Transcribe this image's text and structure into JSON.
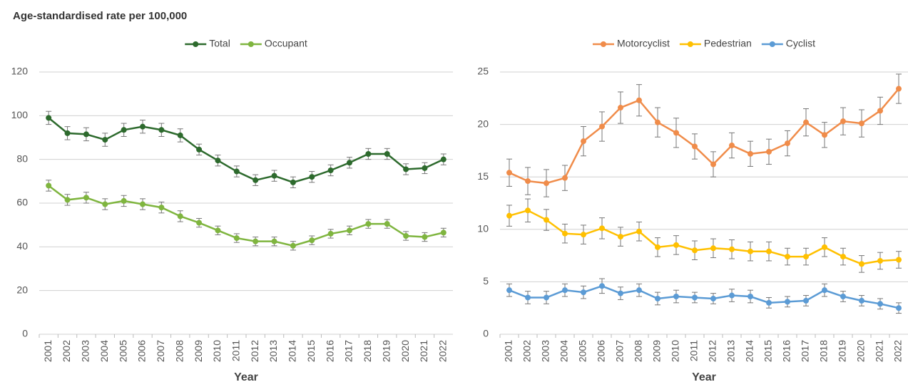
{
  "chart_data": [
    {
      "type": "line",
      "title": "Age-standardised rate per 100,000",
      "x_label": "Year",
      "categories": [
        "2001",
        "2002",
        "2003",
        "2004",
        "2005",
        "2006",
        "2007",
        "2008",
        "2009",
        "2010",
        "2011",
        "2012",
        "2013",
        "2014",
        "2015",
        "2016",
        "2017",
        "2018",
        "2019",
        "2020",
        "2021",
        "2022"
      ],
      "series": [
        {
          "name": "Total",
          "color": "#2d6a2d",
          "values": [
            99,
            92,
            91.5,
            89,
            93.5,
            95,
            93.5,
            91,
            84.5,
            79.5,
            74.5,
            70.5,
            72.5,
            69.5,
            72,
            75,
            78.5,
            82.5,
            82.5,
            75.5,
            76,
            80
          ],
          "errors": [
            3,
            3,
            3,
            3,
            3,
            3,
            3,
            3,
            2.5,
            2.5,
            2.5,
            2.5,
            2.5,
            2.5,
            2.5,
            2.5,
            2.5,
            2.5,
            2.5,
            2.5,
            2.5,
            2.5
          ]
        },
        {
          "name": "Occupant",
          "color": "#7fb53f",
          "values": [
            68,
            61.5,
            62.5,
            59.5,
            61,
            59.5,
            58,
            54,
            51,
            47.5,
            44,
            42.5,
            42.5,
            40.5,
            43,
            46,
            47.5,
            50.5,
            50.5,
            45,
            44.5,
            46.5
          ],
          "errors": [
            2.5,
            2.5,
            2.5,
            2.5,
            2.5,
            2.5,
            2.5,
            2.5,
            2,
            2,
            2,
            2,
            2,
            2,
            2,
            2,
            2,
            2,
            2,
            2,
            2,
            2
          ]
        }
      ],
      "ylim": [
        0,
        120
      ],
      "yticks": [
        0,
        20,
        40,
        60,
        80,
        100,
        120
      ],
      "grid": true,
      "legend": "top"
    },
    {
      "type": "line",
      "x_label": "Year",
      "categories": [
        "2001",
        "2002",
        "2003",
        "2004",
        "2005",
        "2006",
        "2007",
        "2008",
        "2009",
        "2010",
        "2011",
        "2012",
        "2013",
        "2014",
        "2015",
        "2016",
        "2017",
        "2018",
        "2019",
        "2020",
        "2021",
        "2022"
      ],
      "series": [
        {
          "name": "Motorcyclist",
          "color": "#f08c4a",
          "values": [
            15.4,
            14.6,
            14.4,
            14.9,
            18.4,
            19.8,
            21.6,
            22.3,
            20.2,
            19.2,
            17.9,
            16.2,
            18.0,
            17.2,
            17.4,
            18.2,
            20.2,
            19.0,
            20.3,
            20.1,
            21.3,
            23.4
          ],
          "errors": [
            1.3,
            1.3,
            1.3,
            1.2,
            1.4,
            1.4,
            1.5,
            1.5,
            1.4,
            1.4,
            1.2,
            1.2,
            1.2,
            1.2,
            1.2,
            1.2,
            1.3,
            1.2,
            1.3,
            1.3,
            1.3,
            1.4
          ]
        },
        {
          "name": "Pedestrian",
          "color": "#ffc000",
          "values": [
            11.3,
            11.8,
            10.9,
            9.6,
            9.5,
            10.1,
            9.3,
            9.8,
            8.3,
            8.5,
            8.0,
            8.2,
            8.1,
            7.9,
            7.9,
            7.4,
            7.4,
            8.3,
            7.4,
            6.7,
            7.0,
            7.1
          ],
          "errors": [
            1.0,
            1.1,
            1.0,
            0.9,
            0.9,
            1.0,
            0.9,
            0.9,
            0.9,
            0.9,
            0.9,
            0.9,
            0.9,
            0.9,
            0.9,
            0.8,
            0.8,
            0.9,
            0.8,
            0.8,
            0.8,
            0.8
          ]
        },
        {
          "name": "Cyclist",
          "color": "#5b9bd5",
          "values": [
            4.2,
            3.5,
            3.5,
            4.2,
            4.0,
            4.6,
            3.9,
            4.2,
            3.4,
            3.6,
            3.5,
            3.4,
            3.7,
            3.6,
            3.0,
            3.1,
            3.2,
            4.2,
            3.6,
            3.2,
            2.9,
            2.5
          ],
          "errors": [
            0.6,
            0.6,
            0.6,
            0.6,
            0.6,
            0.7,
            0.6,
            0.6,
            0.6,
            0.6,
            0.5,
            0.5,
            0.6,
            0.6,
            0.5,
            0.5,
            0.5,
            0.6,
            0.5,
            0.5,
            0.5,
            0.5
          ]
        }
      ],
      "ylim": [
        0,
        25
      ],
      "yticks": [
        0,
        5,
        10,
        15,
        20,
        25
      ],
      "grid": true,
      "legend": "top"
    }
  ]
}
